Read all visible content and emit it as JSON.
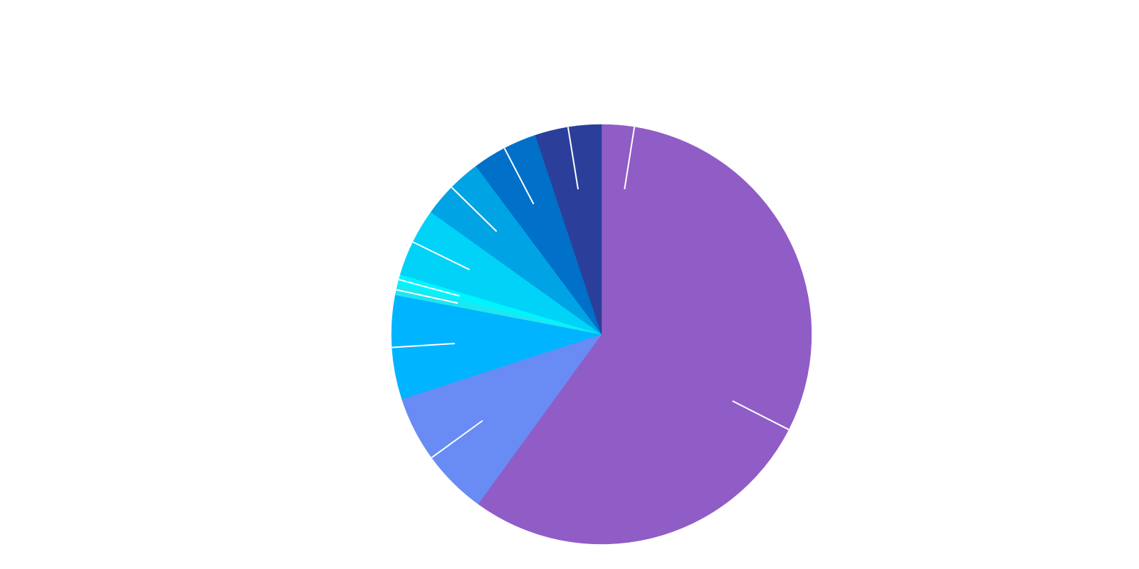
{
  "chart_data": {
    "type": "pie",
    "values": [
      5,
      55,
      10,
      8,
      0.8,
      0.8,
      5.3,
      4.9,
      5.1,
      5.1
    ],
    "colors": [
      "#905cc6",
      "#905cc6",
      "#688cf4",
      "#00b4ff",
      "#1ee6f0",
      "#00f4ff",
      "#00d2f8",
      "#00a3e4",
      "#0070c8",
      "#2b3f9a"
    ]
  }
}
